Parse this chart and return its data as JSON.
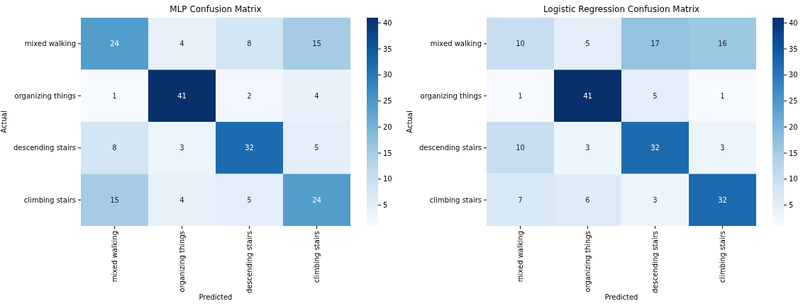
{
  "chart_data": [
    {
      "type": "heatmap",
      "title": "MLP Confusion Matrix",
      "xlabel": "Predicted",
      "ylabel": "Actual",
      "categories": [
        "mixed walking",
        "organizing things",
        "descending stairs",
        "climbing stairs"
      ],
      "y_categories": [
        "mixed walking",
        "organizing things",
        "descending stairs",
        "climbing stairs"
      ],
      "cells": [
        [
          24,
          4,
          8,
          15
        ],
        [
          1,
          41,
          2,
          4
        ],
        [
          8,
          3,
          32,
          5
        ],
        [
          15,
          4,
          5,
          24
        ]
      ],
      "data_labels": true,
      "clim": [
        1,
        41
      ],
      "cticks": [
        5,
        10,
        15,
        20,
        25,
        30,
        35,
        40
      ]
    },
    {
      "type": "heatmap",
      "title": "Logistic Regression Confusion Matrix",
      "xlabel": "Predicted",
      "ylabel": "Actual",
      "categories": [
        "mixed walking",
        "organizing things",
        "descending stairs",
        "climbing stairs"
      ],
      "y_categories": [
        "mixed walking",
        "organizing things",
        "descending stairs",
        "climbing stairs"
      ],
      "cells": [
        [
          10,
          5,
          17,
          16
        ],
        [
          1,
          41,
          5,
          1
        ],
        [
          10,
          3,
          32,
          3
        ],
        [
          7,
          6,
          3,
          32
        ]
      ],
      "data_labels": true,
      "clim": [
        1,
        41
      ],
      "cticks": [
        5,
        10,
        15,
        20,
        25,
        30,
        35,
        40
      ]
    }
  ]
}
